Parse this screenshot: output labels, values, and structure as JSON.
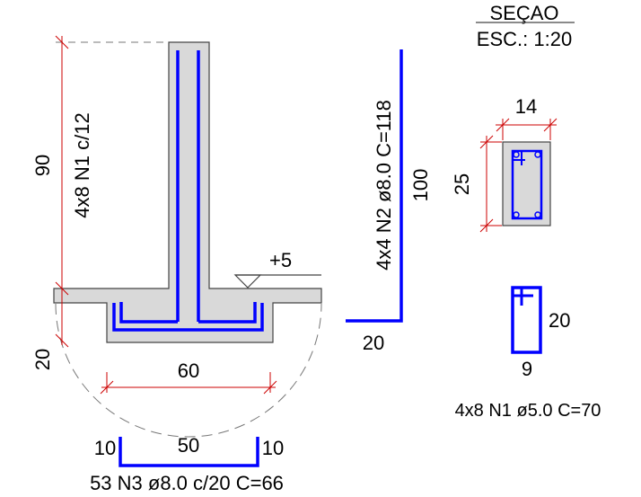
{
  "colors": {
    "concrete_fill": "#d9d9d9",
    "outline": "#444444",
    "rebar": "#0000ff",
    "dimension": "#cc0000",
    "hidden_line": "#777777",
    "text": "#000000"
  },
  "section": {
    "title": "SEÇAO",
    "scale": "ESC.: 1:20",
    "width_label": "14",
    "height_label": "25"
  },
  "elevation": {
    "wall_height_label": "90",
    "wall_bars_label": "4x8 N1 c/12",
    "footing_depth_label": "20",
    "footing_width_label": "60",
    "level_label": "+5"
  },
  "bar_n2": {
    "label": "4x4 N2 ø8.0 C=118",
    "vertical_length": "100",
    "horizontal_length": "20"
  },
  "bar_n1": {
    "label": "4x8 N1 ø5.0 C=70",
    "height": "20",
    "width": "9"
  },
  "bar_n3": {
    "label": "53 N3 ø8.0 c/20 C=66",
    "left_leg": "10",
    "middle": "50",
    "right_leg": "10"
  }
}
